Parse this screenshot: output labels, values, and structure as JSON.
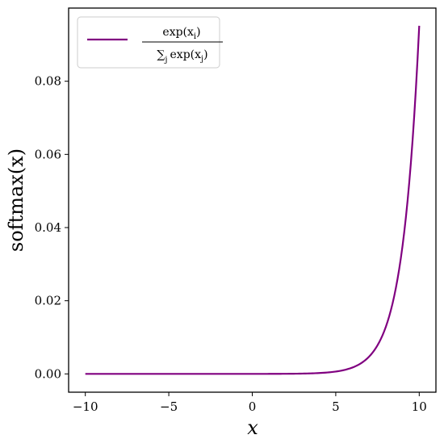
{
  "chart_data": {
    "type": "line",
    "xlabel": "x",
    "ylabel": "softmax(x)",
    "xlim": [
      -11,
      11
    ],
    "ylim": [
      -0.005,
      0.1
    ],
    "x_ticks": [
      -10,
      -5,
      0,
      5,
      10
    ],
    "x_tick_labels": [
      "−10",
      "−5",
      "0",
      "5",
      "10"
    ],
    "y_ticks": [
      0.0,
      0.02,
      0.04,
      0.06,
      0.08
    ],
    "y_tick_labels": [
      "0.00",
      "0.02",
      "0.04",
      "0.06",
      "0.08"
    ],
    "grid": false,
    "legend_position": "top-left",
    "series": [
      {
        "name": "exp(x_i) / Σ_j exp(x_j)",
        "color": "#800080",
        "function": "softmax",
        "x_range": [
          -10,
          10
        ],
        "x_step": 0.1,
        "peak_value": 0.0952
      }
    ]
  },
  "legend": {
    "numerator": "exp(x",
    "numerator_sub": "i",
    "numerator_close": ")",
    "sum": "∑",
    "sum_sub": "j",
    "denominator": "exp(x",
    "denominator_sub": "j",
    "denominator_close": ")"
  }
}
